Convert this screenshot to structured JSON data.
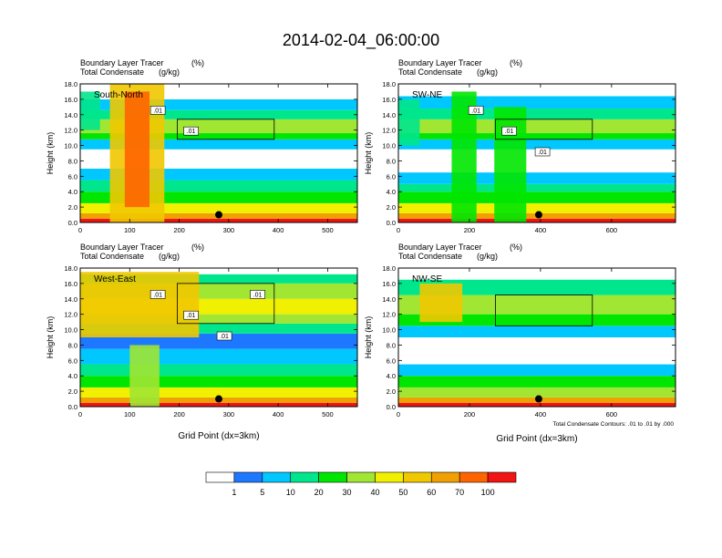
{
  "figure": {
    "title": "2014-02-04_06:00:00"
  },
  "colors": {
    "bins": [
      "#ffffff",
      "#1e78ff",
      "#00c8ff",
      "#00e68c",
      "#00e600",
      "#a0e632",
      "#f0f000",
      "#f0c800",
      "#f0a000",
      "#ff6400",
      "#f01414"
    ],
    "contour": "#000000",
    "frame": "#000000"
  },
  "colorbar": {
    "labels": [
      "1",
      "5",
      "10",
      "20",
      "30",
      "40",
      "50",
      "60",
      "70",
      "100"
    ]
  },
  "chart_data": [
    {
      "type": "heatmap",
      "panel_label": "South-North",
      "fill_variable": "Boundary Layer Tracer",
      "fill_units": "(%)",
      "contour_variable": "Total Condensate",
      "contour_units": "(g/kg)",
      "ylabel": "Height (km)",
      "xlabel": "",
      "xlim": [
        0,
        560
      ],
      "ylim": [
        0,
        18
      ],
      "xticks": [
        "0",
        "100",
        "200",
        "300",
        "400",
        "500"
      ],
      "yticks": [
        "0.0",
        "2.0",
        "4.0",
        "6.0",
        "8.0",
        "10.0",
        "12.0",
        "14.0",
        "16.0",
        "18.0"
      ],
      "contour_labels": [
        ".01",
        ".01"
      ],
      "marker": {
        "x": 280,
        "y": 1.0
      },
      "bands": [
        {
          "y0": 0,
          "y1": 0.5,
          "level": 10
        },
        {
          "y0": 0.5,
          "y1": 1.2,
          "level": 8
        },
        {
          "y0": 1.2,
          "y1": 2.5,
          "level": 6
        },
        {
          "y0": 2.5,
          "y1": 4.0,
          "level": 4
        },
        {
          "y0": 4.0,
          "y1": 5.5,
          "level": 3
        },
        {
          "y0": 5.5,
          "y1": 7.0,
          "level": 2
        },
        {
          "y0": 7.0,
          "y1": 9.5,
          "level": 0
        },
        {
          "y0": 9.5,
          "y1": 10.8,
          "level": 2
        },
        {
          "y0": 10.8,
          "y1": 11.6,
          "level": 4
        },
        {
          "y0": 11.6,
          "y1": 13.4,
          "level": 5
        },
        {
          "y0": 13.4,
          "y1": 14.6,
          "level": 3
        },
        {
          "y0": 14.6,
          "y1": 16.0,
          "level": 2
        },
        {
          "y0": 16.0,
          "y1": 18.0,
          "level": 0
        }
      ],
      "plumes": [
        {
          "x0": 60,
          "x1": 170,
          "y0": 0,
          "y1": 18,
          "level": 7
        },
        {
          "x0": 90,
          "x1": 140,
          "y0": 2,
          "y1": 17,
          "level": 9
        },
        {
          "x0": 0,
          "x1": 40,
          "y0": 12,
          "y1": 17,
          "level": 3
        }
      ]
    },
    {
      "type": "heatmap",
      "panel_label": "SW-NE",
      "fill_variable": "Boundary Layer Tracer",
      "fill_units": "(%)",
      "contour_variable": "Total Condensate",
      "contour_units": "(g/kg)",
      "ylabel": "Height (km)",
      "xlabel": "",
      "xlim": [
        0,
        780
      ],
      "ylim": [
        0,
        18
      ],
      "xticks": [
        "0",
        "200",
        "400",
        "600"
      ],
      "yticks": [
        "0.0",
        "2.0",
        "4.0",
        "6.0",
        "8.0",
        "10.0",
        "12.0",
        "14.0",
        "16.0",
        "18.0"
      ],
      "contour_labels": [
        ".01",
        ".01",
        ".01"
      ],
      "marker": {
        "x": 395,
        "y": 1.0
      },
      "bands": [
        {
          "y0": 0,
          "y1": 0.5,
          "level": 10
        },
        {
          "y0": 0.5,
          "y1": 1.2,
          "level": 8
        },
        {
          "y0": 1.2,
          "y1": 2.5,
          "level": 6
        },
        {
          "y0": 2.5,
          "y1": 4.0,
          "level": 4
        },
        {
          "y0": 4.0,
          "y1": 5.0,
          "level": 3
        },
        {
          "y0": 5.0,
          "y1": 6.5,
          "level": 2
        },
        {
          "y0": 6.5,
          "y1": 9.5,
          "level": 0
        },
        {
          "y0": 9.5,
          "y1": 10.8,
          "level": 2
        },
        {
          "y0": 10.8,
          "y1": 11.6,
          "level": 4
        },
        {
          "y0": 11.6,
          "y1": 13.4,
          "level": 5
        },
        {
          "y0": 13.4,
          "y1": 14.8,
          "level": 3
        },
        {
          "y0": 14.8,
          "y1": 16.4,
          "level": 2
        },
        {
          "y0": 16.4,
          "y1": 18.0,
          "level": 0
        }
      ],
      "plumes": [
        {
          "x0": 150,
          "x1": 220,
          "y0": 0,
          "y1": 17,
          "level": 4
        },
        {
          "x0": 270,
          "x1": 360,
          "y0": 0,
          "y1": 15,
          "level": 4
        },
        {
          "x0": 0,
          "x1": 60,
          "y0": 10,
          "y1": 16,
          "level": 3
        }
      ]
    },
    {
      "type": "heatmap",
      "panel_label": "West-East",
      "fill_variable": "Boundary Layer Tracer",
      "fill_units": "(%)",
      "contour_variable": "Total Condensate",
      "contour_units": "(g/kg)",
      "ylabel": "Height (km)",
      "xlabel": "Grid Point (dx=3km)",
      "xlim": [
        0,
        560
      ],
      "ylim": [
        0,
        18
      ],
      "xticks": [
        "0",
        "100",
        "200",
        "300",
        "400",
        "500"
      ],
      "yticks": [
        "0.0",
        "2.0",
        "4.0",
        "6.0",
        "8.0",
        "10.0",
        "12.0",
        "14.0",
        "16.0",
        "18.0"
      ],
      "contour_labels": [
        ".01",
        ".01",
        ".01",
        ".01"
      ],
      "marker": {
        "x": 280,
        "y": 1.0
      },
      "bands": [
        {
          "y0": 0,
          "y1": 0.5,
          "level": 10
        },
        {
          "y0": 0.5,
          "y1": 1.2,
          "level": 8
        },
        {
          "y0": 1.2,
          "y1": 2.5,
          "level": 6
        },
        {
          "y0": 2.5,
          "y1": 4.0,
          "level": 4
        },
        {
          "y0": 4.0,
          "y1": 5.5,
          "level": 3
        },
        {
          "y0": 5.5,
          "y1": 7.5,
          "level": 2
        },
        {
          "y0": 7.5,
          "y1": 9.5,
          "level": 1
        },
        {
          "y0": 9.5,
          "y1": 10.8,
          "level": 3
        },
        {
          "y0": 10.8,
          "y1": 12.0,
          "level": 5
        },
        {
          "y0": 12.0,
          "y1": 14.0,
          "level": 6
        },
        {
          "y0": 14.0,
          "y1": 16.0,
          "level": 5
        },
        {
          "y0": 16.0,
          "y1": 17.2,
          "level": 3
        },
        {
          "y0": 17.2,
          "y1": 18.0,
          "level": 0
        }
      ],
      "plumes": [
        {
          "x0": 0,
          "x1": 240,
          "y0": 9,
          "y1": 17.5,
          "level": 7
        },
        {
          "x0": 100,
          "x1": 160,
          "y0": 0,
          "y1": 8,
          "level": 5
        }
      ]
    },
    {
      "type": "heatmap",
      "panel_label": "NW-SE",
      "fill_variable": "Boundary Layer Tracer",
      "fill_units": "(%)",
      "contour_variable": "Total Condensate",
      "contour_units": "(g/kg)",
      "ylabel": "Height (km)",
      "xlabel": "Grid Point (dx=3km)",
      "xlim": [
        0,
        780
      ],
      "ylim": [
        0,
        18
      ],
      "xticks": [
        "0",
        "200",
        "400",
        "600"
      ],
      "yticks": [
        "0.0",
        "2.0",
        "4.0",
        "6.0",
        "8.0",
        "10.0",
        "12.0",
        "14.0",
        "16.0",
        "18.0"
      ],
      "contour_labels": [],
      "marker": {
        "x": 395,
        "y": 1.0
      },
      "footnote": "Total Condensate Contours: .01 to .01 by .000",
      "bands": [
        {
          "y0": 0,
          "y1": 0.5,
          "level": 10
        },
        {
          "y0": 0.5,
          "y1": 1.2,
          "level": 8
        },
        {
          "y0": 1.2,
          "y1": 2.5,
          "level": 5
        },
        {
          "y0": 2.5,
          "y1": 4.0,
          "level": 4
        },
        {
          "y0": 4.0,
          "y1": 5.5,
          "level": 2
        },
        {
          "y0": 5.5,
          "y1": 9.0,
          "level": 0
        },
        {
          "y0": 9.0,
          "y1": 10.5,
          "level": 2
        },
        {
          "y0": 10.5,
          "y1": 12.0,
          "level": 4
        },
        {
          "y0": 12.0,
          "y1": 14.5,
          "level": 5
        },
        {
          "y0": 14.5,
          "y1": 16.5,
          "level": 3
        },
        {
          "y0": 16.5,
          "y1": 18.0,
          "level": 0
        }
      ],
      "plumes": [
        {
          "x0": 60,
          "x1": 180,
          "y0": 11,
          "y1": 16,
          "level": 7
        }
      ]
    }
  ]
}
